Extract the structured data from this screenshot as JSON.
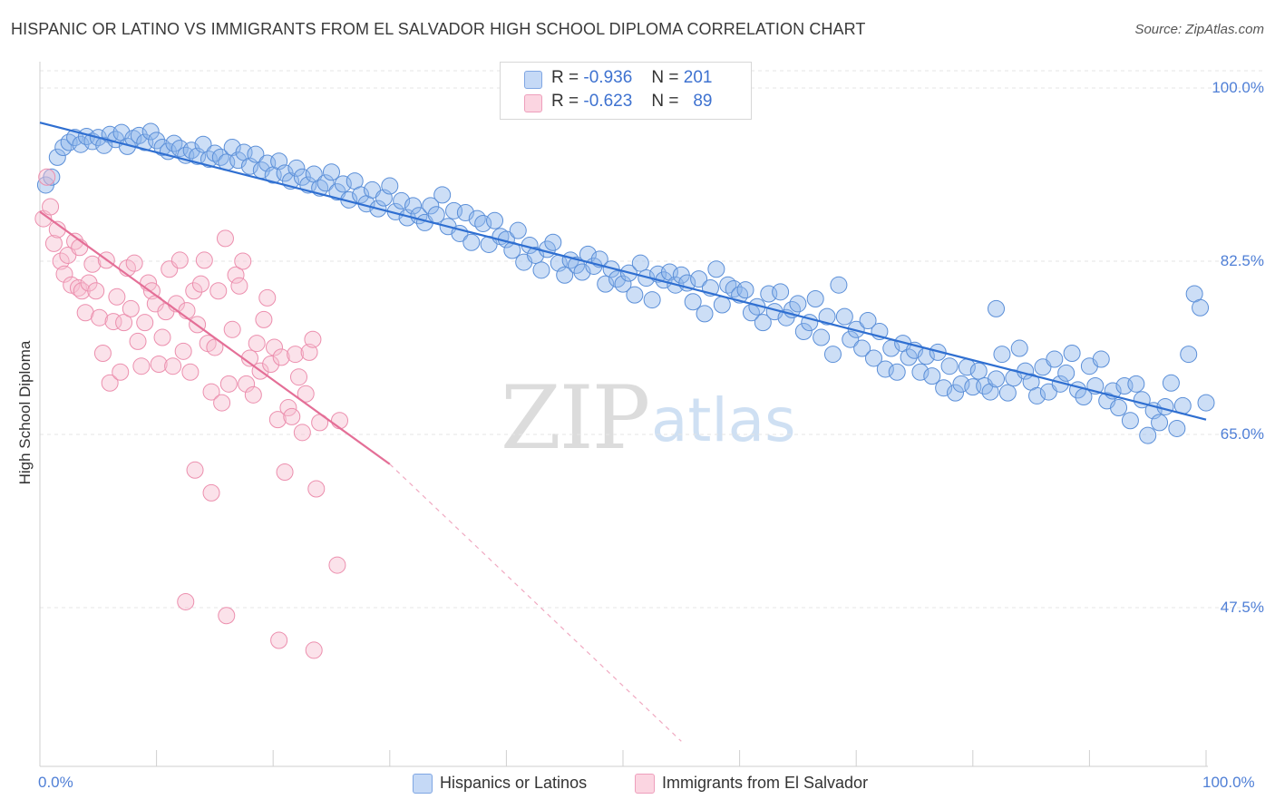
{
  "title": "HISPANIC OR LATINO VS IMMIGRANTS FROM EL SALVADOR HIGH SCHOOL DIPLOMA CORRELATION CHART",
  "source": "Source: ZipAtlas.com",
  "watermark": {
    "zip": "ZIP",
    "atlas": "atlas"
  },
  "legend": {
    "rows": [
      {
        "r_label": "R =",
        "r_value": "-0.936",
        "n_label": "N =",
        "n_value": "201",
        "color": "#aac8f2"
      },
      {
        "r_label": "R =",
        "r_value": "-0.623",
        "n_label": "N =",
        "n_value": "89",
        "color": "#f6bfd0"
      }
    ]
  },
  "chart_data": {
    "type": "scatter",
    "title": "HISPANIC OR LATINO VS IMMIGRANTS FROM EL SALVADOR HIGH SCHOOL DIPLOMA CORRELATION CHART",
    "xlabel": "",
    "ylabel": "High School Diploma",
    "xlim": [
      0,
      100
    ],
    "ylim": [
      30,
      100
    ],
    "x_tick_labels": [
      "0.0%",
      "100.0%"
    ],
    "y_tick_labels": [
      "100.0%",
      "82.5%",
      "65.0%",
      "47.5%"
    ],
    "y_tick_values": [
      100,
      82.5,
      65,
      47.5
    ],
    "grid": true,
    "legend_position": "top-center",
    "series": [
      {
        "name": "Hispanics or Latinos",
        "color": "#8fb5ea",
        "edge": "#5b8fd8",
        "trend": {
          "x": [
            0,
            100
          ],
          "y": [
            96.5,
            66.5
          ],
          "color": "#2f6fd1"
        },
        "points": [
          [
            0.5,
            90.2
          ],
          [
            1,
            91
          ],
          [
            1.5,
            93
          ],
          [
            2,
            94
          ],
          [
            2.5,
            94.5
          ],
          [
            3,
            95
          ],
          [
            3.5,
            94.3
          ],
          [
            4,
            95.1
          ],
          [
            4.5,
            94.6
          ],
          [
            5,
            95
          ],
          [
            5.5,
            94.2
          ],
          [
            6,
            95.3
          ],
          [
            6.5,
            94.8
          ],
          [
            7,
            95.5
          ],
          [
            7.5,
            94.1
          ],
          [
            8,
            94.9
          ],
          [
            8.5,
            95.2
          ],
          [
            9,
            94.5
          ],
          [
            9.5,
            95.6
          ],
          [
            10,
            94.7
          ],
          [
            10.5,
            94
          ],
          [
            11,
            93.6
          ],
          [
            11.5,
            94.4
          ],
          [
            12,
            93.9
          ],
          [
            12.5,
            93.2
          ],
          [
            13,
            93.7
          ],
          [
            13.5,
            93.1
          ],
          [
            14,
            94.3
          ],
          [
            14.5,
            92.8
          ],
          [
            15,
            93.4
          ],
          [
            15.5,
            93
          ],
          [
            16,
            92.5
          ],
          [
            16.5,
            94
          ],
          [
            17,
            92.7
          ],
          [
            17.5,
            93.5
          ],
          [
            18,
            92.1
          ],
          [
            18.5,
            93.3
          ],
          [
            19,
            91.7
          ],
          [
            19.5,
            92.4
          ],
          [
            20,
            91.2
          ],
          [
            20.5,
            92.6
          ],
          [
            21,
            91.4
          ],
          [
            21.5,
            90.6
          ],
          [
            22,
            91.9
          ],
          [
            22.5,
            91
          ],
          [
            23,
            90.2
          ],
          [
            23.5,
            91.3
          ],
          [
            24,
            89.9
          ],
          [
            24.5,
            90.4
          ],
          [
            25,
            91.5
          ],
          [
            25.5,
            89.5
          ],
          [
            26,
            90.3
          ],
          [
            26.5,
            88.7
          ],
          [
            27,
            90.6
          ],
          [
            27.5,
            89.2
          ],
          [
            28,
            88.3
          ],
          [
            28.5,
            89.7
          ],
          [
            29,
            87.8
          ],
          [
            29.5,
            88.9
          ],
          [
            30,
            90.1
          ],
          [
            30.5,
            87.5
          ],
          [
            31,
            88.6
          ],
          [
            31.5,
            86.9
          ],
          [
            32,
            88.1
          ],
          [
            32.5,
            87.1
          ],
          [
            33,
            86.4
          ],
          [
            33.5,
            88.1
          ],
          [
            34,
            87.2
          ],
          [
            34.5,
            89.2
          ],
          [
            35,
            86
          ],
          [
            35.5,
            87.6
          ],
          [
            36,
            85.3
          ],
          [
            36.5,
            87.4
          ],
          [
            37,
            84.4
          ],
          [
            37.5,
            86.8
          ],
          [
            38,
            86.3
          ],
          [
            38.5,
            84.2
          ],
          [
            39,
            86.6
          ],
          [
            39.5,
            85
          ],
          [
            40,
            84.7
          ],
          [
            40.5,
            83.6
          ],
          [
            41,
            85.6
          ],
          [
            41.5,
            82.4
          ],
          [
            42,
            84.1
          ],
          [
            42.5,
            83.1
          ],
          [
            43,
            81.6
          ],
          [
            43.5,
            83.7
          ],
          [
            44,
            84.4
          ],
          [
            44.5,
            82.3
          ],
          [
            45,
            81.1
          ],
          [
            45.5,
            82.6
          ],
          [
            46,
            82.1
          ],
          [
            46.5,
            81.4
          ],
          [
            47,
            83.2
          ],
          [
            47.5,
            82
          ],
          [
            48,
            82.7
          ],
          [
            48.5,
            80.2
          ],
          [
            49,
            81.7
          ],
          [
            49.5,
            80.7
          ],
          [
            50,
            80.2
          ],
          [
            50.5,
            81.3
          ],
          [
            51,
            79.1
          ],
          [
            51.5,
            82.3
          ],
          [
            52,
            80.8
          ],
          [
            52.5,
            78.6
          ],
          [
            53,
            81.2
          ],
          [
            53.5,
            80.6
          ],
          [
            54,
            81.4
          ],
          [
            54.5,
            80.1
          ],
          [
            55,
            81.1
          ],
          [
            55.5,
            80.3
          ],
          [
            56,
            78.4
          ],
          [
            56.5,
            80.7
          ],
          [
            57,
            77.2
          ],
          [
            57.5,
            79.8
          ],
          [
            58,
            81.7
          ],
          [
            58.5,
            78.1
          ],
          [
            59,
            80.1
          ],
          [
            59.5,
            79.7
          ],
          [
            60,
            79.1
          ],
          [
            60.5,
            79.6
          ],
          [
            61,
            77.3
          ],
          [
            61.5,
            77.9
          ],
          [
            62,
            76.3
          ],
          [
            62.5,
            79.2
          ],
          [
            63,
            77.4
          ],
          [
            63.5,
            79.4
          ],
          [
            64,
            76.8
          ],
          [
            64.5,
            77.6
          ],
          [
            65,
            78.2
          ],
          [
            65.5,
            75.4
          ],
          [
            66,
            76.3
          ],
          [
            66.5,
            78.7
          ],
          [
            67,
            74.8
          ],
          [
            67.5,
            76.9
          ],
          [
            68,
            73.1
          ],
          [
            68.5,
            80.1
          ],
          [
            69,
            76.9
          ],
          [
            69.5,
            74.6
          ],
          [
            70,
            75.6
          ],
          [
            70.5,
            73.7
          ],
          [
            71,
            76.5
          ],
          [
            71.5,
            72.7
          ],
          [
            72,
            75.4
          ],
          [
            72.5,
            71.6
          ],
          [
            73,
            73.7
          ],
          [
            73.5,
            71.3
          ],
          [
            74,
            74.2
          ],
          [
            74.5,
            72.8
          ],
          [
            75,
            73.5
          ],
          [
            75.5,
            71.3
          ],
          [
            76,
            72.9
          ],
          [
            76.5,
            70.9
          ],
          [
            77,
            73.3
          ],
          [
            77.5,
            69.7
          ],
          [
            78,
            71.9
          ],
          [
            78.5,
            69.2
          ],
          [
            79,
            70.1
          ],
          [
            79.5,
            71.8
          ],
          [
            80,
            69.8
          ],
          [
            80.5,
            71.4
          ],
          [
            81,
            69.9
          ],
          [
            81.5,
            69.3
          ],
          [
            82,
            70.6
          ],
          [
            82.5,
            73.1
          ],
          [
            83,
            69.2
          ],
          [
            83.5,
            70.7
          ],
          [
            84,
            73.7
          ],
          [
            84.5,
            71.4
          ],
          [
            85,
            70.3
          ],
          [
            85.5,
            68.9
          ],
          [
            86,
            71.8
          ],
          [
            86.5,
            69.3
          ],
          [
            87,
            72.6
          ],
          [
            87.5,
            70.1
          ],
          [
            88,
            71.2
          ],
          [
            88.5,
            73.2
          ],
          [
            89,
            69.5
          ],
          [
            89.5,
            68.8
          ],
          [
            90,
            71.9
          ],
          [
            90.5,
            69.9
          ],
          [
            91,
            72.6
          ],
          [
            91.5,
            68.4
          ],
          [
            92,
            69.4
          ],
          [
            92.5,
            67.7
          ],
          [
            93,
            69.9
          ],
          [
            93.5,
            66.4
          ],
          [
            94,
            70.1
          ],
          [
            94.5,
            68.5
          ],
          [
            95,
            64.9
          ],
          [
            95.5,
            67.4
          ],
          [
            96,
            66.2
          ],
          [
            96.5,
            67.8
          ],
          [
            97,
            70.2
          ],
          [
            97.5,
            65.6
          ],
          [
            98,
            67.9
          ],
          [
            98.5,
            73.1
          ],
          [
            99,
            79.2
          ],
          [
            99.5,
            77.8
          ],
          [
            100,
            68.2
          ],
          [
            82,
            77.7
          ]
        ]
      },
      {
        "name": "Immigrants from El Salvador",
        "color": "#f6bfd0",
        "edge": "#ec8fae",
        "trend": {
          "x": [
            0,
            30
          ],
          "y": [
            87.5,
            62
          ],
          "color": "#e46f97"
        },
        "trend_extension": {
          "x": [
            30,
            55
          ],
          "y": [
            62,
            34
          ]
        },
        "points": [
          [
            0.3,
            86.8
          ],
          [
            0.6,
            91
          ],
          [
            0.9,
            88
          ],
          [
            1.2,
            84.3
          ],
          [
            1.5,
            85.7
          ],
          [
            1.8,
            82.5
          ],
          [
            2.1,
            81.2
          ],
          [
            2.4,
            83.1
          ],
          [
            2.7,
            80.1
          ],
          [
            3,
            84.5
          ],
          [
            3.3,
            79.8
          ],
          [
            3.6,
            79.5
          ],
          [
            3.9,
            77.3
          ],
          [
            4.2,
            80.3
          ],
          [
            4.5,
            82.2
          ],
          [
            4.8,
            79.5
          ],
          [
            5.1,
            76.8
          ],
          [
            5.4,
            73.2
          ],
          [
            5.7,
            82.6
          ],
          [
            6,
            70.2
          ],
          [
            6.3,
            76.4
          ],
          [
            6.6,
            78.9
          ],
          [
            6.9,
            71.3
          ],
          [
            7.2,
            76.3
          ],
          [
            7.5,
            81.8
          ],
          [
            7.8,
            77.7
          ],
          [
            8.1,
            82.3
          ],
          [
            8.4,
            74.4
          ],
          [
            8.7,
            71.9
          ],
          [
            9,
            76.3
          ],
          [
            9.3,
            80.3
          ],
          [
            9.6,
            79.5
          ],
          [
            9.9,
            78.2
          ],
          [
            10.2,
            72.1
          ],
          [
            10.5,
            74.8
          ],
          [
            10.8,
            77.4
          ],
          [
            11.1,
            81.7
          ],
          [
            11.4,
            71.9
          ],
          [
            11.7,
            78.2
          ],
          [
            12,
            82.6
          ],
          [
            12.3,
            73.4
          ],
          [
            12.6,
            77.5
          ],
          [
            12.9,
            71.3
          ],
          [
            13.2,
            79.5
          ],
          [
            13.5,
            76.1
          ],
          [
            13.8,
            80.2
          ],
          [
            14.1,
            82.6
          ],
          [
            14.4,
            74.2
          ],
          [
            14.7,
            69.3
          ],
          [
            15,
            73.8
          ],
          [
            15.3,
            79.5
          ],
          [
            15.6,
            68.2
          ],
          [
            15.9,
            84.8
          ],
          [
            16.2,
            70.1
          ],
          [
            16.5,
            75.6
          ],
          [
            16.8,
            81.1
          ],
          [
            17.1,
            80
          ],
          [
            17.4,
            82.5
          ],
          [
            17.7,
            70.1
          ],
          [
            18,
            72.7
          ],
          [
            18.3,
            69
          ],
          [
            18.6,
            74.2
          ],
          [
            18.9,
            71.4
          ],
          [
            19.2,
            76.6
          ],
          [
            19.5,
            78.8
          ],
          [
            19.8,
            72.1
          ],
          [
            20.1,
            73.8
          ],
          [
            20.4,
            66.5
          ],
          [
            20.7,
            72.8
          ],
          [
            21,
            61.2
          ],
          [
            21.3,
            67.7
          ],
          [
            21.6,
            66.8
          ],
          [
            21.9,
            73.1
          ],
          [
            22.2,
            70.8
          ],
          [
            22.5,
            65.2
          ],
          [
            22.8,
            69.1
          ],
          [
            23.1,
            73.3
          ],
          [
            23.4,
            74.6
          ],
          [
            23.7,
            59.5
          ],
          [
            24,
            66.2
          ],
          [
            12.5,
            48.1
          ],
          [
            16,
            46.7
          ],
          [
            20.5,
            44.2
          ],
          [
            23.5,
            43.2
          ],
          [
            25.5,
            51.8
          ],
          [
            25.7,
            66.4
          ],
          [
            13.3,
            61.4
          ],
          [
            14.7,
            59.1
          ],
          [
            3.4,
            83.9
          ]
        ]
      }
    ]
  }
}
